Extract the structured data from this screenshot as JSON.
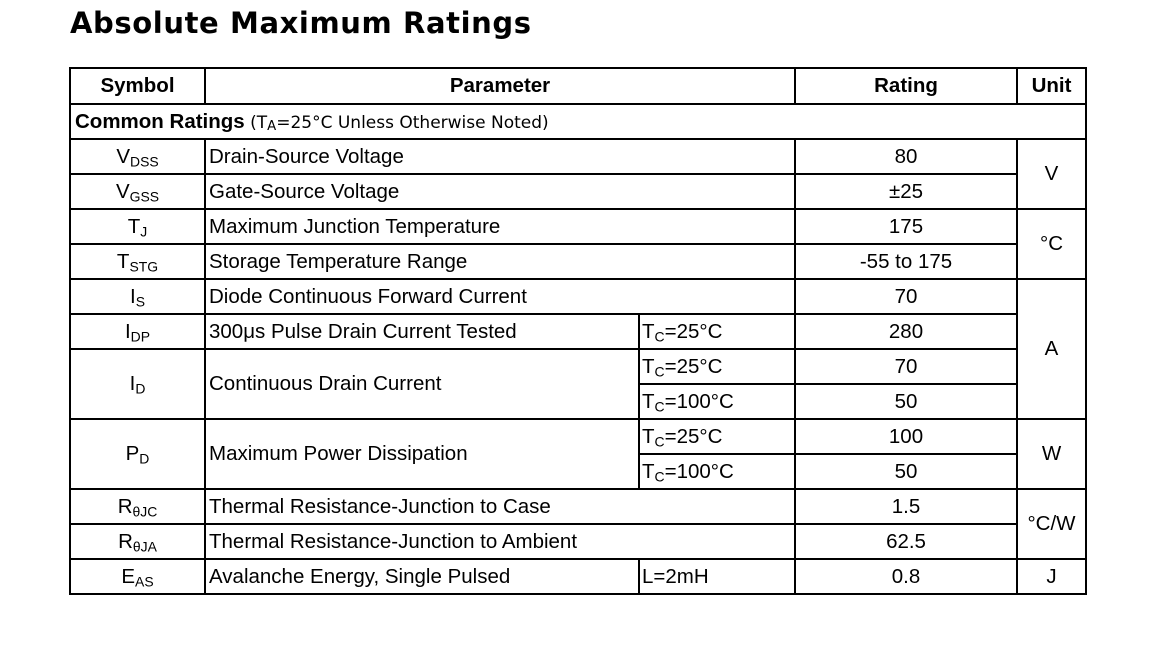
{
  "title": "Absolute Maximum Ratings",
  "headers": {
    "symbol": "Symbol",
    "parameter": "Parameter",
    "rating": "Rating",
    "unit": "Unit"
  },
  "section": {
    "label": "Common Ratings",
    "note_open": " (T",
    "note_sub": "A",
    "note_rest": "=25°C Unless Otherwise Noted)"
  },
  "rows": {
    "vdss": {
      "sym": "V",
      "sub": "DSS",
      "param": "Drain-Source Voltage",
      "rating": "80"
    },
    "vgss": {
      "sym": "V",
      "sub": "GSS",
      "param": "Gate-Source Voltage",
      "rating": "±25"
    },
    "tj": {
      "sym": "T",
      "sub": "J",
      "param": "Maximum Junction Temperature",
      "rating": "175"
    },
    "tstg": {
      "sym": "T",
      "sub": "STG",
      "param": "Storage Temperature Range",
      "rating": "-55 to 175"
    },
    "is": {
      "sym": "I",
      "sub": "S",
      "param": "Diode Continuous Forward Current",
      "rating": "70"
    },
    "idp": {
      "sym": "I",
      "sub": "DP",
      "param": "300μs Pulse Drain Current Tested",
      "cond_t": "T",
      "cond_sub": "C",
      "cond_rest": "=25°C",
      "rating": "280"
    },
    "id": {
      "sym": "I",
      "sub": "D",
      "param": "Continuous Drain Current",
      "cond1_t": "T",
      "cond1_sub": "C",
      "cond1_rest": "=25°C",
      "rating1": "70",
      "cond2_t": "T",
      "cond2_sub": "C",
      "cond2_rest": "=100°C",
      "rating2": "50"
    },
    "pd": {
      "sym": "P",
      "sub": "D",
      "param": "Maximum Power Dissipation",
      "cond1_t": "T",
      "cond1_sub": "C",
      "cond1_rest": "=25°C",
      "rating1": "100",
      "cond2_t": "T",
      "cond2_sub": "C",
      "cond2_rest": "=100°C",
      "rating2": "50"
    },
    "rjc": {
      "sym": "R",
      "sub": "θJC",
      "param": "Thermal Resistance-Junction to Case",
      "rating": "1.5"
    },
    "rja": {
      "sym": "R",
      "sub": "θJA",
      "param": "Thermal Resistance-Junction to Ambient",
      "rating": "62.5"
    },
    "eas": {
      "sym": "E",
      "sub": "AS",
      "param": "Avalanche Energy, Single Pulsed",
      "cond": "L=2mH",
      "rating": "0.8"
    }
  },
  "units": {
    "voltage": "V",
    "temperature": "°C",
    "current": "A",
    "power": "W",
    "thermal": "°C/W",
    "energy": "J"
  }
}
